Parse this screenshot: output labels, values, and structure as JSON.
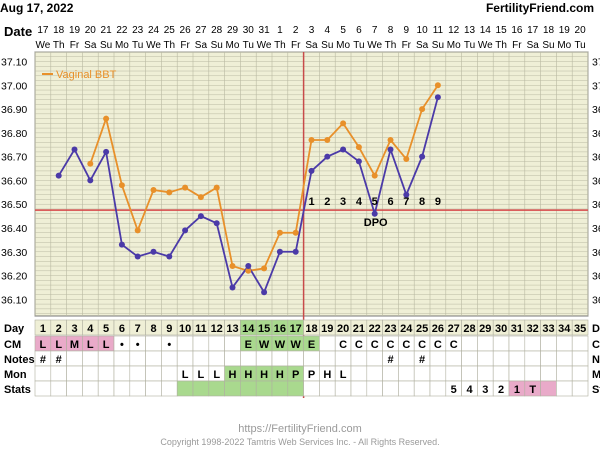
{
  "header": {
    "date_text": "Aug 17, 2022",
    "site_text": "FertilityFriend.com",
    "date_row_label": "Date"
  },
  "colors": {
    "bg": "#efefd6",
    "grid": "#b9b9a2",
    "vaginal_bbt": "#e8902a",
    "temp_line": "#4b3aa8",
    "coverline": "#d74a4a",
    "ovulation_line": "#c84a4a",
    "green_cell": "#a9d98e",
    "pink_cell": "#e9aac9",
    "footer_text": "#9a9a9a"
  },
  "chart_data": {
    "type": "line",
    "title": "",
    "x_day_labels": [
      "17",
      "18",
      "19",
      "20",
      "21",
      "22",
      "23",
      "24",
      "25",
      "26",
      "27",
      "28",
      "29",
      "30",
      "31",
      "1",
      "2",
      "3",
      "4",
      "5",
      "6",
      "7",
      "8",
      "9",
      "10",
      "11",
      "12",
      "13",
      "14",
      "15",
      "16",
      "17",
      "18",
      "19",
      "20"
    ],
    "x_weekday_labels": [
      "We",
      "Th",
      "Fr",
      "Sa",
      "Su",
      "Mo",
      "Tu",
      "We",
      "Th",
      "Fr",
      "Sa",
      "Su",
      "Mo",
      "Tu",
      "We",
      "Th",
      "Fr",
      "Sa",
      "Su",
      "Mo",
      "Tu",
      "We",
      "Th",
      "Fr",
      "Sa",
      "Su",
      "Mo",
      "Tu",
      "We",
      "Th",
      "Fr",
      "Sa",
      "Su",
      "Mo",
      "Tu"
    ],
    "cycle_days": [
      "1",
      "2",
      "3",
      "4",
      "5",
      "6",
      "7",
      "8",
      "9",
      "10",
      "11",
      "12",
      "13",
      "14",
      "15",
      "16",
      "17",
      "18",
      "19",
      "20",
      "21",
      "22",
      "23",
      "24",
      "25",
      "26",
      "27",
      "28",
      "29",
      "30",
      "31",
      "32",
      "33",
      "34",
      "35"
    ],
    "y_ticks": [
      "36.10",
      "36.20",
      "36.30",
      "36.40",
      "36.50",
      "36.60",
      "36.70",
      "36.80",
      "36.90",
      "37.00",
      "37.10"
    ],
    "ylim": [
      36.03,
      37.14
    ],
    "series": [
      {
        "name": "Vaginal BBT",
        "values": [
          null,
          null,
          null,
          36.67,
          36.86,
          36.58,
          36.39,
          36.56,
          36.55,
          36.57,
          36.53,
          36.57,
          36.24,
          36.22,
          36.23,
          36.38,
          36.38,
          36.77,
          36.77,
          36.84,
          36.74,
          36.62,
          36.77,
          36.69,
          36.9,
          37.0,
          null,
          null,
          null,
          null,
          null,
          null,
          null,
          null,
          null
        ]
      },
      {
        "name": "",
        "values": [
          null,
          36.62,
          36.73,
          36.6,
          36.72,
          36.33,
          36.28,
          36.3,
          36.28,
          36.39,
          36.45,
          36.42,
          36.15,
          36.24,
          36.13,
          36.3,
          36.3,
          36.64,
          36.7,
          36.73,
          36.68,
          36.46,
          36.73,
          36.54,
          36.7,
          36.95,
          null,
          null,
          null,
          null,
          null,
          null,
          null,
          null,
          null
        ]
      }
    ],
    "coverline": 36.475,
    "ovulation_cycle_day": 17,
    "dpo_labels": [
      "1",
      "2",
      "3",
      "4",
      "5",
      "6",
      "7",
      "8",
      "9"
    ],
    "dpo_text": "DPO",
    "legend": "top-left"
  },
  "table": {
    "row_labels": [
      "Day",
      "CM",
      "Notes",
      "Mon",
      "Stats"
    ],
    "cm": [
      "L",
      "L",
      "M",
      "L",
      "L",
      "•",
      "•",
      "",
      "•",
      "",
      "",
      "",
      "",
      "E",
      "W",
      "W",
      "W",
      "E",
      "",
      "C",
      "C",
      "C",
      "C",
      "C",
      "C",
      "C",
      "C",
      "",
      "",
      "",
      "",
      "",
      "",
      "",
      ""
    ],
    "notes": [
      "#",
      "#",
      "",
      "",
      "",
      "",
      "",
      "",
      "",
      "",
      "",
      "",
      "",
      "",
      "",
      "",
      "",
      "",
      "",
      "",
      "",
      "",
      "#",
      "",
      "#",
      "",
      "",
      "",
      "",
      "",
      "",
      "",
      "",
      "",
      ""
    ],
    "mon": [
      "",
      "",
      "",
      "",
      "",
      "",
      "",
      "",
      "",
      "L",
      "L",
      "L",
      "H",
      "H",
      "H",
      "H",
      "P",
      "P",
      "H",
      "L",
      "",
      "",
      "",
      "",
      "",
      "",
      "",
      "",
      "",
      "",
      "",
      "",
      "",
      "",
      ""
    ],
    "stats": [
      "",
      "",
      "",
      "",
      "",
      "",
      "",
      "",
      "",
      "",
      "",
      "",
      "",
      "",
      "",
      "",
      "",
      "",
      "",
      "",
      "",
      "",
      "",
      "",
      "",
      "",
      "5",
      "4",
      "3",
      "2",
      "1",
      "T",
      "",
      "",
      ""
    ]
  },
  "footer": {
    "url": "https://FertilityFriend.com",
    "copyright": "Copyright 1998-2022 Tamtris Web Services Inc. - All Rights Reserved."
  }
}
